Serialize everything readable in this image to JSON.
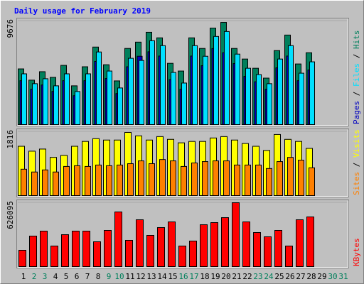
{
  "title": "Daily usage for February 2019",
  "chart_data": [
    {
      "type": "bar",
      "ylim": [
        0,
        9676
      ],
      "yticks": [
        9676
      ],
      "legend_separator": " / ",
      "series": [
        {
          "name": "Hits",
          "color": "#00805c",
          "values": [
            5200,
            4150,
            4940,
            4410,
            5530,
            3620,
            5400,
            7240,
            5590,
            4080,
            7110,
            7700,
            8620,
            8100,
            5720,
            5000,
            8100,
            7110,
            9010,
            9540,
            7110,
            6120,
            5260,
            4340,
            6910,
            8360,
            5660,
            6710,
            null,
            null,
            null
          ]
        },
        {
          "name": "Files",
          "color": "#00e0ff",
          "values": [
            4740,
            3820,
            4280,
            3620,
            4740,
            3090,
            4740,
            6780,
            5000,
            3420,
            6190,
            5990,
            7830,
            7370,
            4870,
            3880,
            7370,
            6380,
            8230,
            8690,
            6580,
            5260,
            4670,
            3820,
            6120,
            7370,
            4800,
            5860,
            null,
            null,
            null
          ]
        },
        {
          "name": "Pages",
          "color": "#0000c0",
          "values": [
            4100,
            3300,
            3700,
            3100,
            4100,
            2700,
            4100,
            5900,
            4300,
            2900,
            5400,
            6380,
            6800,
            6400,
            4200,
            3300,
            6400,
            5500,
            7100,
            6710,
            5700,
            4500,
            4000,
            3300,
            5300,
            6400,
            4100,
            5100,
            null,
            null,
            null
          ]
        }
      ]
    },
    {
      "type": "bar",
      "ylim": [
        0,
        1816
      ],
      "yticks": [
        1816
      ],
      "legend_separator": " / ",
      "series": [
        {
          "name": "Visits",
          "color": "#ffff00",
          "values": [
            1402,
            1263,
            1323,
            1086,
            1145,
            1402,
            1540,
            1619,
            1579,
            1579,
            1796,
            1698,
            1579,
            1678,
            1599,
            1500,
            1540,
            1540,
            1638,
            1678,
            1579,
            1481,
            1402,
            1283,
            1737,
            1599,
            1540,
            1342,
            null,
            null,
            null
          ]
        },
        {
          "name": "Sites",
          "color": "#ff8000",
          "values": [
            750,
            671,
            730,
            671,
            829,
            849,
            829,
            869,
            849,
            869,
            908,
            987,
            908,
            1026,
            987,
            829,
            928,
            967,
            987,
            987,
            869,
            869,
            869,
            770,
            967,
            1086,
            1007,
            790,
            null,
            null,
            null
          ]
        }
      ]
    },
    {
      "type": "bar",
      "ylim": [
        0,
        626095
      ],
      "yticks": [
        626095
      ],
      "categories": [
        "1",
        "2",
        "3",
        "4",
        "5",
        "6",
        "7",
        "8",
        "9",
        "10",
        "11",
        "12",
        "13",
        "14",
        "15",
        "16",
        "17",
        "18",
        "19",
        "20",
        "21",
        "22",
        "23",
        "24",
        "25",
        "26",
        "27",
        "28",
        "29",
        "30",
        "31"
      ],
      "category_colors": [
        "#000000",
        "#00805c",
        "#00805c",
        "#000000",
        "#000000",
        "#000000",
        "#000000",
        "#000000",
        "#00805c",
        "#00805c",
        "#000000",
        "#000000",
        "#000000",
        "#000000",
        "#000000",
        "#00805c",
        "#00805c",
        "#000000",
        "#000000",
        "#000000",
        "#000000",
        "#000000",
        "#00805c",
        "#00805c",
        "#000000",
        "#000000",
        "#000000",
        "#000000",
        "#000000",
        "#00805c",
        "#00805c"
      ],
      "series": [
        {
          "name": "KBytes",
          "color": "#ff0000",
          "values": [
            160000,
            299150,
            347850,
            201750,
            313070,
            347850,
            347850,
            243500,
            354800,
            535690,
            257400,
            459160,
            306110,
            382640,
            438290,
            201750,
            250450,
            410460,
            431330,
            480030,
            626000,
            438290,
            333940,
            292190,
            354800,
            201750,
            459160,
            486990,
            null,
            null,
            null
          ]
        }
      ]
    }
  ]
}
